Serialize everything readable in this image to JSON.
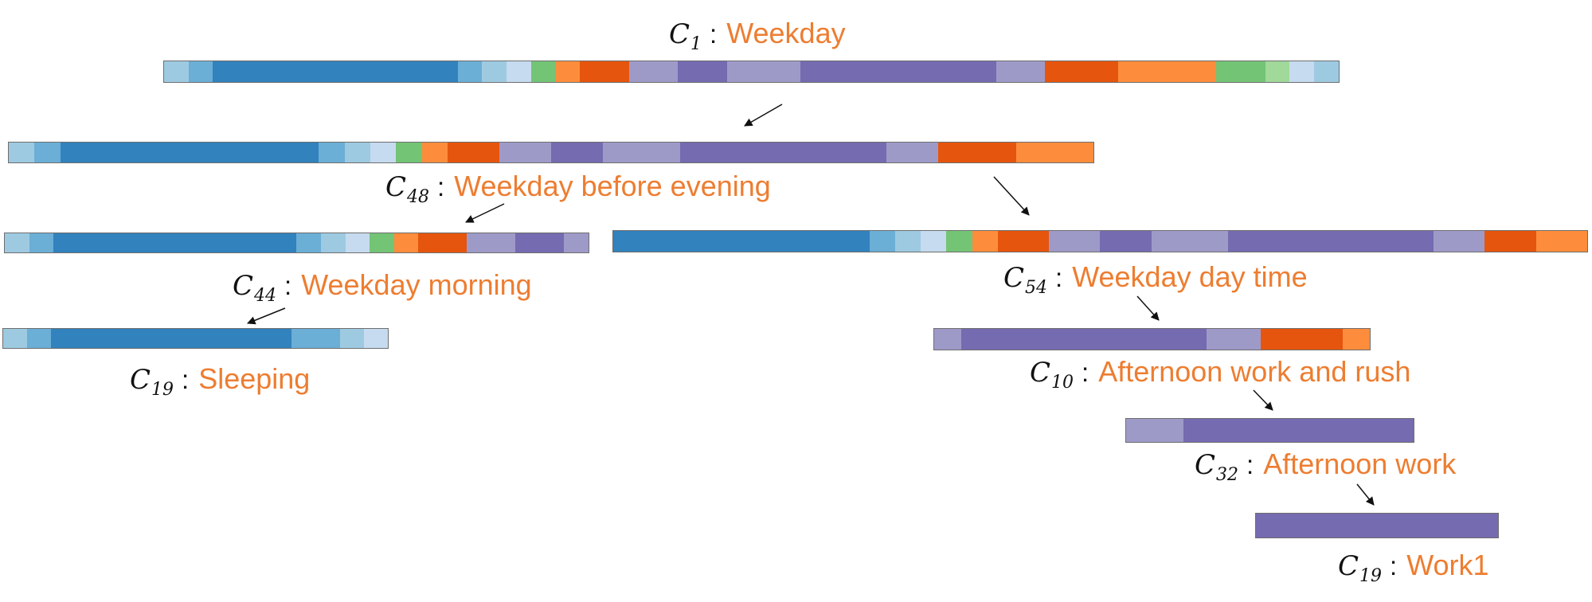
{
  "colors": {
    "label": "#ed7d31",
    "palette": {
      "b1": "#9ecae1",
      "b2": "#6baed6",
      "b3": "#3182bd",
      "b4": "#c6dbef",
      "g1": "#74c476",
      "g2": "#a1d99b",
      "o1": "#fd8d3c",
      "o2": "#e6550d",
      "p1": "#9e9ac8",
      "p2": "#756bb1"
    }
  },
  "clusters": [
    {
      "id": "c1",
      "symbol": "C",
      "sub": "1",
      "label": "Weekday",
      "segments": [
        [
          "b1",
          3
        ],
        [
          "b2",
          3
        ],
        [
          "b3",
          30
        ],
        [
          "b2",
          3
        ],
        [
          "b1",
          3
        ],
        [
          "b4",
          3
        ],
        [
          "g1",
          3
        ],
        [
          "o1",
          3
        ],
        [
          "o2",
          6
        ],
        [
          "p1",
          6
        ],
        [
          "p2",
          6
        ],
        [
          "p1",
          9
        ],
        [
          "p2",
          24
        ],
        [
          "p1",
          6
        ],
        [
          "o2",
          9
        ],
        [
          "o1",
          12
        ],
        [
          "g1",
          6
        ],
        [
          "g2",
          3
        ],
        [
          "b4",
          3
        ],
        [
          "b1",
          3
        ]
      ]
    },
    {
      "id": "c48",
      "symbol": "C",
      "sub": "48",
      "label": "Weekday before evening",
      "segments": [
        [
          "b1",
          3
        ],
        [
          "b2",
          3
        ],
        [
          "b3",
          30
        ],
        [
          "b2",
          3
        ],
        [
          "b1",
          3
        ],
        [
          "b4",
          3
        ],
        [
          "g1",
          3
        ],
        [
          "o1",
          3
        ],
        [
          "o2",
          6
        ],
        [
          "p1",
          6
        ],
        [
          "p2",
          6
        ],
        [
          "p1",
          9
        ],
        [
          "p2",
          24
        ],
        [
          "p1",
          6
        ],
        [
          "o2",
          9
        ],
        [
          "o1",
          9
        ]
      ]
    },
    {
      "id": "c44",
      "symbol": "C",
      "sub": "44",
      "label": "Weekday morning",
      "segments": [
        [
          "b1",
          3
        ],
        [
          "b2",
          3
        ],
        [
          "b3",
          30
        ],
        [
          "b2",
          3
        ],
        [
          "b1",
          3
        ],
        [
          "b4",
          3
        ],
        [
          "g1",
          3
        ],
        [
          "o1",
          3
        ],
        [
          "o2",
          6
        ],
        [
          "p1",
          6
        ],
        [
          "p2",
          6
        ],
        [
          "p1",
          3
        ]
      ]
    },
    {
      "id": "c54",
      "symbol": "C",
      "sub": "54",
      "label": "Weekday day time",
      "segments": [
        [
          "b3",
          30
        ],
        [
          "b2",
          3
        ],
        [
          "b1",
          3
        ],
        [
          "b4",
          3
        ],
        [
          "g1",
          3
        ],
        [
          "o1",
          3
        ],
        [
          "o2",
          6
        ],
        [
          "p1",
          6
        ],
        [
          "p2",
          6
        ],
        [
          "p1",
          9
        ],
        [
          "p2",
          24
        ],
        [
          "p1",
          6
        ],
        [
          "o2",
          6
        ],
        [
          "o1",
          6
        ]
      ]
    },
    {
      "id": "c10_work",
      "symbol": "C",
      "sub": "10",
      "label": "Afternoon work and rush",
      "segments": [
        [
          "p1",
          3
        ],
        [
          "p2",
          27
        ],
        [
          "p1",
          6
        ],
        [
          "o2",
          9
        ],
        [
          "o1",
          3
        ]
      ]
    },
    {
      "id": "c19_sleep",
      "symbol": "C",
      "sub": "19",
      "label": "Sleeping",
      "segments": [
        [
          "b1",
          3
        ],
        [
          "b2",
          3
        ],
        [
          "b3",
          30
        ],
        [
          "b2",
          6
        ],
        [
          "b1",
          3
        ],
        [
          "b4",
          3
        ]
      ]
    },
    {
      "id": "c32",
      "symbol": "C",
      "sub": "32",
      "label": "Afternoon work",
      "segments": [
        [
          "p1",
          6
        ],
        [
          "p2",
          24
        ]
      ]
    },
    {
      "id": "c19_work",
      "symbol": "C",
      "sub": "19",
      "label": "Work1",
      "segments": [
        [
          "p2",
          24
        ]
      ]
    }
  ]
}
